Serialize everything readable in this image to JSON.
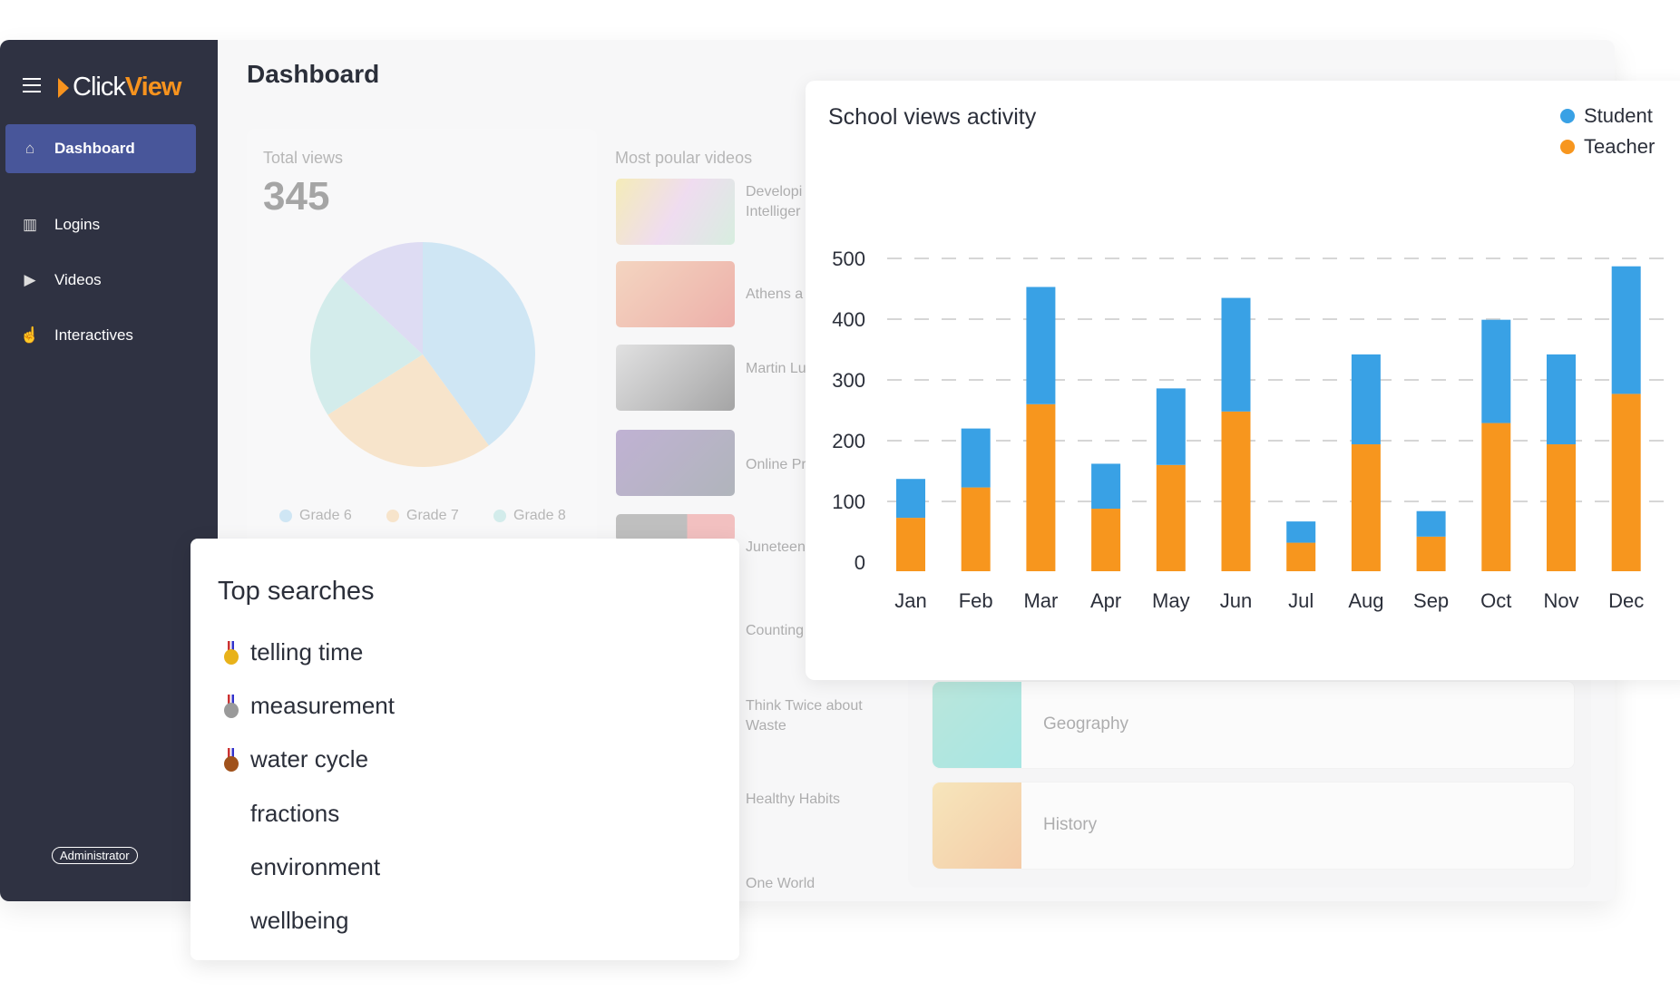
{
  "sidebar": {
    "logo_left": "Click",
    "logo_right": "View",
    "items": [
      {
        "label": "Dashboard",
        "icon": "home-icon",
        "active": true
      },
      {
        "label": "Logins",
        "icon": "monitor-chart-icon"
      },
      {
        "label": "Videos",
        "icon": "monitor-play-icon"
      },
      {
        "label": "Interactives",
        "icon": "pointer-hand-icon"
      }
    ],
    "role_badge": "Administrator"
  },
  "header": {
    "title": "Dashboard"
  },
  "total_views": {
    "label": "Total views",
    "value": "345",
    "pie": {
      "values": [
        40,
        26,
        21,
        13
      ],
      "colors": [
        "#a9d6f2",
        "#f8d3a0",
        "#b0e2df",
        "#c6c2f0"
      ]
    },
    "legend": [
      {
        "label": "Grade 6",
        "color": "#a9d6f2"
      },
      {
        "label": "Grade 7",
        "color": "#f8d3a0"
      },
      {
        "label": "Grade 8",
        "color": "#b0e2df"
      }
    ]
  },
  "popular": {
    "label": "Most poular videos",
    "videos": [
      {
        "title": "Developi Emotiona Intelliger"
      },
      {
        "title": "Athens a"
      },
      {
        "title": "Martin Lu Jr"
      },
      {
        "title": "Online Pr"
      },
      {
        "title": "Juneteen"
      },
      {
        "title": "Counting"
      },
      {
        "title": "Think Twice about Waste"
      },
      {
        "title": "Healthy Habits"
      },
      {
        "title": "One World"
      }
    ]
  },
  "subjects": [
    {
      "label": "Geography"
    },
    {
      "label": "History"
    }
  ],
  "chart_data": {
    "type": "bar",
    "stacked": true,
    "title": "School views activity",
    "categories": [
      "Jan",
      "Feb",
      "Mar",
      "Apr",
      "May",
      "Jun",
      "Jul",
      "Aug",
      "Sep",
      "Oct",
      "Nov",
      "Dec"
    ],
    "series": [
      {
        "name": "Teacher",
        "color": "#f7961e",
        "values": [
          73,
          123,
          260,
          88,
          160,
          248,
          32,
          194,
          42,
          229,
          194,
          277
        ]
      },
      {
        "name": "Student",
        "color": "#39a1e5",
        "values": [
          64,
          97,
          193,
          74,
          126,
          187,
          35,
          148,
          42,
          170,
          148,
          210
        ]
      }
    ],
    "ylim": [
      0,
      500
    ],
    "yticks": [
      "0",
      "100",
      "200",
      "300",
      "400",
      "500"
    ],
    "grid": true,
    "legend": "top-right"
  },
  "top_searches": {
    "title": "Top searches",
    "items": [
      {
        "label": "telling time",
        "medal": "#e8b21a"
      },
      {
        "label": "measurement",
        "medal": "#9a9a9a"
      },
      {
        "label": "water cycle",
        "medal": "#a0521c"
      },
      {
        "label": "fractions"
      },
      {
        "label": "environment"
      },
      {
        "label": "wellbeing"
      }
    ]
  }
}
